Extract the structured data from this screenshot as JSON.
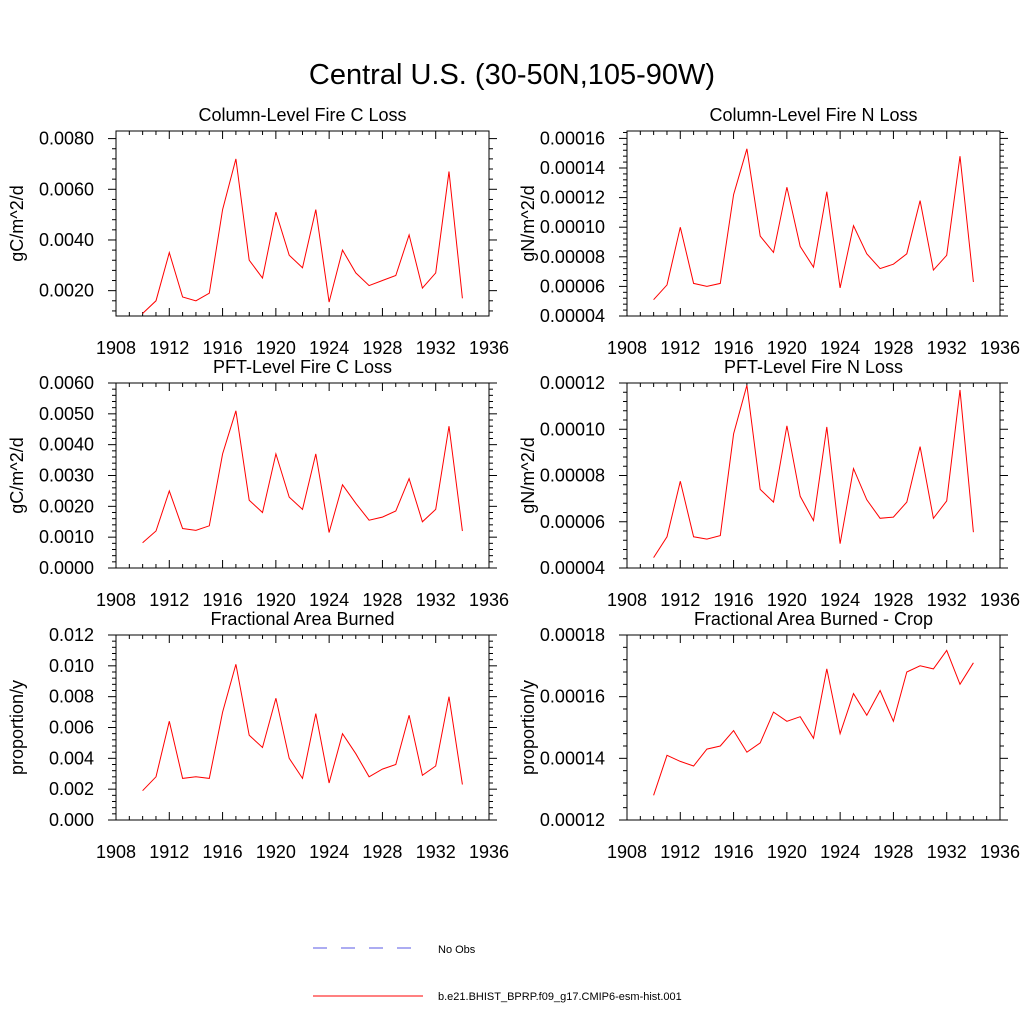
{
  "figure": {
    "title": "Central U.S. (30-50N,105-90W)"
  },
  "legend": [
    {
      "label": "No Obs",
      "color": "#5a5ae6",
      "dash": "dashed"
    },
    {
      "label": "b.e21.BHIST_BPRP.f09_g17.CMIP6-esm-hist.001",
      "color": "#ff0000",
      "dash": "solid"
    }
  ],
  "chart_data": [
    {
      "type": "line",
      "title": "Column-Level Fire C Loss",
      "ylabel": "gC/m^2/d",
      "xlim": [
        1908,
        1936
      ],
      "xticks": [
        "1908",
        "1912",
        "1916",
        "1920",
        "1924",
        "1928",
        "1932",
        "1936"
      ],
      "ylim": [
        0.001,
        0.0083
      ],
      "yticks": [
        "0.0020",
        "0.0040",
        "0.0060",
        "0.0080"
      ],
      "x": [
        1910,
        1911,
        1912,
        1913,
        1914,
        1915,
        1916,
        1917,
        1918,
        1919,
        1920,
        1921,
        1922,
        1923,
        1924,
        1925,
        1926,
        1927,
        1928,
        1929,
        1930,
        1931,
        1932,
        1933,
        1934
      ],
      "series": [
        {
          "values": [
            0.0011,
            0.0016,
            0.0035,
            0.00175,
            0.0016,
            0.0019,
            0.0052,
            0.0072,
            0.0032,
            0.0025,
            0.0051,
            0.0034,
            0.0029,
            0.0052,
            0.00155,
            0.0036,
            0.0027,
            0.0022,
            0.0024,
            0.0026,
            0.0042,
            0.0021,
            0.0027,
            0.0067,
            0.0017
          ],
          "color": "#ff0000"
        }
      ]
    },
    {
      "type": "line",
      "title": "Column-Level Fire N Loss",
      "ylabel": "gN/m^2/d",
      "xlim": [
        1908,
        1936
      ],
      "xticks": [
        "1908",
        "1912",
        "1916",
        "1920",
        "1924",
        "1928",
        "1932",
        "1936"
      ],
      "ylim": [
        4e-05,
        0.000165
      ],
      "yticks": [
        "0.00004",
        "0.00006",
        "0.00008",
        "0.00010",
        "0.00012",
        "0.00014",
        "0.00016"
      ],
      "x": [
        1910,
        1911,
        1912,
        1913,
        1914,
        1915,
        1916,
        1917,
        1918,
        1919,
        1920,
        1921,
        1922,
        1923,
        1924,
        1925,
        1926,
        1927,
        1928,
        1929,
        1930,
        1931,
        1932,
        1933,
        1934
      ],
      "series": [
        {
          "values": [
            5.1e-05,
            6.1e-05,
            0.0001,
            6.2e-05,
            6e-05,
            6.2e-05,
            0.000122,
            0.000153,
            9.4e-05,
            8.3e-05,
            0.000127,
            8.7e-05,
            7.3e-05,
            0.000124,
            5.9e-05,
            0.000101,
            8.2e-05,
            7.2e-05,
            7.5e-05,
            8.2e-05,
            0.000118,
            7.1e-05,
            8.1e-05,
            0.000148,
            6.3e-05
          ],
          "color": "#ff0000"
        }
      ]
    },
    {
      "type": "line",
      "title": "PFT-Level Fire C Loss",
      "ylabel": "gC/m^2/d",
      "xlim": [
        1908,
        1936
      ],
      "xticks": [
        "1908",
        "1912",
        "1916",
        "1920",
        "1924",
        "1928",
        "1932",
        "1936"
      ],
      "ylim": [
        0,
        0.006
      ],
      "yticks": [
        "0.0000",
        "0.0010",
        "0.0020",
        "0.0030",
        "0.0040",
        "0.0050",
        "0.0060"
      ],
      "x": [
        1910,
        1911,
        1912,
        1913,
        1914,
        1915,
        1916,
        1917,
        1918,
        1919,
        1920,
        1921,
        1922,
        1923,
        1924,
        1925,
        1926,
        1927,
        1928,
        1929,
        1930,
        1931,
        1932,
        1933,
        1934
      ],
      "series": [
        {
          "values": [
            0.00082,
            0.0012,
            0.0025,
            0.00128,
            0.00122,
            0.00137,
            0.0037,
            0.0051,
            0.0022,
            0.0018,
            0.0037,
            0.0023,
            0.0019,
            0.0037,
            0.00115,
            0.0027,
            0.0021,
            0.00155,
            0.00165,
            0.00185,
            0.0029,
            0.0015,
            0.0019,
            0.0046,
            0.0012
          ],
          "color": "#ff0000"
        }
      ]
    },
    {
      "type": "line",
      "title": "PFT-Level Fire N Loss",
      "ylabel": "gN/m^2/d",
      "xlim": [
        1908,
        1936
      ],
      "xticks": [
        "1908",
        "1912",
        "1916",
        "1920",
        "1924",
        "1928",
        "1932",
        "1936"
      ],
      "ylim": [
        4e-05,
        0.00012
      ],
      "yticks": [
        "0.00004",
        "0.00006",
        "0.00008",
        "0.00010",
        "0.00012"
      ],
      "x": [
        1910,
        1911,
        1912,
        1913,
        1914,
        1915,
        1916,
        1917,
        1918,
        1919,
        1920,
        1921,
        1922,
        1923,
        1924,
        1925,
        1926,
        1927,
        1928,
        1929,
        1930,
        1931,
        1932,
        1933,
        1934
      ],
      "series": [
        {
          "values": [
            4.45e-05,
            5.35e-05,
            7.75e-05,
            5.35e-05,
            5.25e-05,
            5.4e-05,
            9.8e-05,
            0.000119,
            7.4e-05,
            6.85e-05,
            0.0001015,
            7.1e-05,
            6.05e-05,
            0.000101,
            5.05e-05,
            8.3e-05,
            6.95e-05,
            6.15e-05,
            6.2e-05,
            6.85e-05,
            9.25e-05,
            6.15e-05,
            6.9e-05,
            0.000117,
            5.55e-05
          ],
          "color": "#ff0000"
        }
      ]
    },
    {
      "type": "line",
      "title": "Fractional Area Burned",
      "ylabel": "proportion/y",
      "xlim": [
        1908,
        1936
      ],
      "xticks": [
        "1908",
        "1912",
        "1916",
        "1920",
        "1924",
        "1928",
        "1932",
        "1936"
      ],
      "ylim": [
        0,
        0.012
      ],
      "yticks": [
        "0.000",
        "0.002",
        "0.004",
        "0.006",
        "0.008",
        "0.010",
        "0.012"
      ],
      "x": [
        1910,
        1911,
        1912,
        1913,
        1914,
        1915,
        1916,
        1917,
        1918,
        1919,
        1920,
        1921,
        1922,
        1923,
        1924,
        1925,
        1926,
        1927,
        1928,
        1929,
        1930,
        1931,
        1932,
        1933,
        1934
      ],
      "series": [
        {
          "values": [
            0.0019,
            0.0028,
            0.0064,
            0.0027,
            0.0028,
            0.0027,
            0.007,
            0.0101,
            0.0055,
            0.0047,
            0.0079,
            0.004,
            0.0027,
            0.0069,
            0.0024,
            0.0056,
            0.0043,
            0.0028,
            0.0033,
            0.0036,
            0.0068,
            0.0029,
            0.0035,
            0.008,
            0.0023
          ],
          "color": "#ff0000"
        }
      ]
    },
    {
      "type": "line",
      "title": "Fractional Area Burned - Crop",
      "ylabel": "proportion/y",
      "xlim": [
        1908,
        1936
      ],
      "xticks": [
        "1908",
        "1912",
        "1916",
        "1920",
        "1924",
        "1928",
        "1932",
        "1936"
      ],
      "ylim": [
        0.00012,
        0.00018
      ],
      "yticks": [
        "0.00012",
        "0.00014",
        "0.00016",
        "0.00018"
      ],
      "x": [
        1910,
        1911,
        1912,
        1913,
        1914,
        1915,
        1916,
        1917,
        1918,
        1919,
        1920,
        1921,
        1922,
        1923,
        1924,
        1925,
        1926,
        1927,
        1928,
        1929,
        1930,
        1931,
        1932,
        1933,
        1934
      ],
      "series": [
        {
          "values": [
            0.000128,
            0.000141,
            0.000139,
            0.0001375,
            0.000143,
            0.000144,
            0.000149,
            0.000142,
            0.000145,
            0.000155,
            0.000152,
            0.0001535,
            0.0001465,
            0.000169,
            0.000148,
            0.000161,
            0.000154,
            0.000162,
            0.000152,
            0.000168,
            0.00017,
            0.000169,
            0.000175,
            0.000164,
            0.000171
          ],
          "color": "#ff0000"
        }
      ]
    }
  ]
}
